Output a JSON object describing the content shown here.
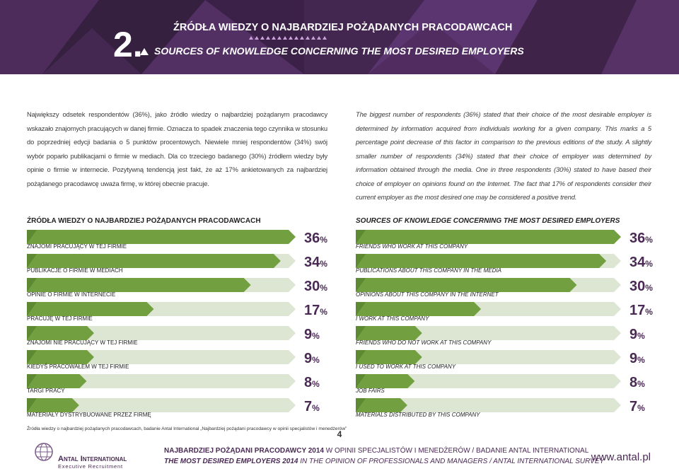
{
  "header": {
    "number": "2.",
    "title_pl": "ŹRÓDŁA WIEDZY O NAJBARDZIEJ POŻĄDANYCH PRACODAWCACH",
    "title_en": "SOURCES OF KNOWLEDGE CONCERNING THE MOST DESIRED EMPLOYERS"
  },
  "intro": {
    "pl": "Największy odsetek respondentów (36%), jako źródło wiedzy o najbardziej pożądanym pracodawcy wskazało znajomych pracujących w danej firmie. Oznacza to spadek znaczenia tego czynnika w stosunku do poprzedniej edycji badania o 5 punktów procentowych. Niewiele mniej respondentów (34%) swój wybór poparło publikacjami o firmie w mediach. Dla co trzeciego badanego (30%) źródłem wiedzy były opinie o firmie w internecie. Pozytywną tendencją jest fakt, że aż 17% ankietowanych za najbardziej pożądanego pracodawcę uważa firmę, w której obecnie pracuje.",
    "en": "The biggest number of respondents (36%) stated that their choice of the most desirable employer is determined by information acquired from individuals working for a given company. This marks a 5 percentage point decrease of this factor in comparison to the previous editions of the study. A slightly smaller number of respondents (34%) stated that their choice of employer was determined by information obtained through the media. One in three respondents (30%) stated to have based their choice of employer on opinions found on the Internet. The fact that 17% of respondents consider their current employer as the most desired one may be considered a positive trend."
  },
  "charts": [
    {
      "type": "bar",
      "title": "ŹRÓDŁA WIEDZY O NAJBARDZIEJ POŻĄDANYCH PRACODAWCACH",
      "color": "#72a040",
      "categories": [
        "ZNAJOMI PRACUJĄCY W TEJ FIRMIE",
        "PUBLIKACJE O FIRMIE W MEDIACH",
        "OPINIE O FIRMIE W INTERNECIE",
        "PRACUJĘ W TEJ FIRMIE",
        "ZNAJOMI NIE PRACUJĄCY W TEJ FIRMIE",
        "KIEDYŚ PRACOWAŁEM W TEJ FIRMIE",
        "TARGI PRACY",
        "MATERIAŁY DYSTRYBUOWANE PRZEZ FIRMĘ"
      ],
      "values": [
        36,
        34,
        30,
        17,
        9,
        9,
        8,
        7
      ],
      "value_labels": [
        "36%",
        "34%",
        "30%",
        "17%",
        "9%",
        "9%",
        "8%",
        "7%"
      ]
    },
    {
      "type": "bar",
      "title": "SOURCES OF KNOWLEDGE CONCERNING THE MOST DESIRED EMPLOYERS",
      "color": "#72a040",
      "categories": [
        "FRIENDS WHO WORK AT THIS COMPANY",
        "PUBLICATIONS ABOUT THIS COMPANY IN THE MEDIA",
        "OPINIONS ABOUT THIS COMPANY IN THE INTERNET",
        "I WORK AT THIS COMPANY",
        "FRIENDS WHO DO NOT WORK AT THIS COMPANY",
        "I USED TO WORK AT THIS COMPANY",
        "JOB FAIRS",
        "MATERIALS DISTRIBUTED BY THIS COMPANY"
      ],
      "values": [
        36,
        34,
        30,
        17,
        9,
        9,
        8,
        7
      ],
      "value_labels": [
        "36%",
        "34%",
        "30%",
        "17%",
        "9%",
        "9%",
        "8%",
        "7%"
      ]
    }
  ],
  "source": "Źródła wiedzy o najbardziej pożądanych pracodawcach, badanie Antal International „Najbardziej pożądani pracodawcy w opinii specjalistów i menedżerów”",
  "page_number": "4",
  "logo": {
    "name": "Antal International",
    "tagline": "Executive Recruitment"
  },
  "footer": {
    "pl_bold": "NAJBARDZIEJ POŻĄDANI PRACODAWCY 2014",
    "pl_rest": " W OPINII SPECJALISTÓW I MENEDŻERÓW / BADANIE ANTAL INTERNATIONAL",
    "en_bold": "THE MOST DESIRED EMPLOYERS 2014",
    "en_rest": " IN THE OPINION OF PROFESSIONALS AND MANAGERS / ANTAL INTERNATIONAL SURVEY",
    "website": "www.antal.pl"
  }
}
